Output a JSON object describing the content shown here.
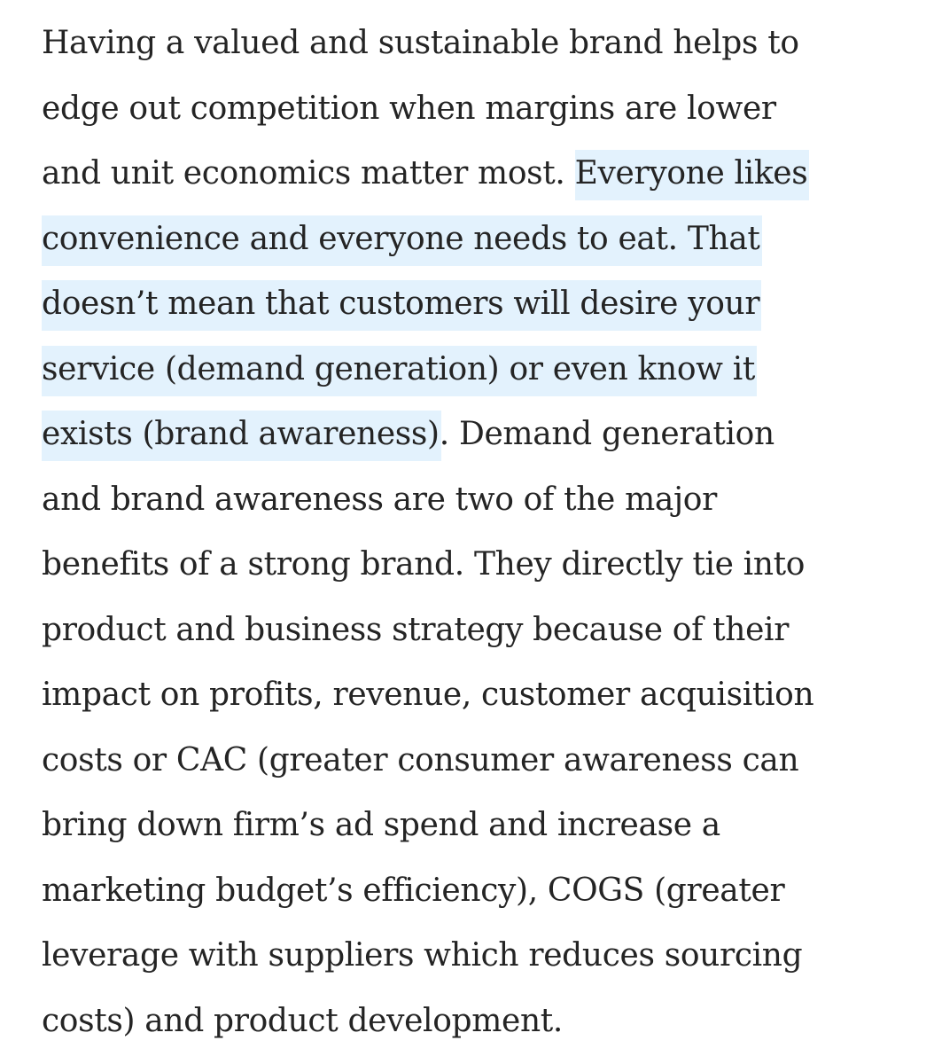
{
  "article": {
    "paragraph": {
      "lines": [
        {
          "plain_before": "Having a valued and sustainable brand helps to",
          "highlight": "",
          "plain_after": ""
        },
        {
          "plain_before": "edge out competition when margins are lower",
          "highlight": "",
          "plain_after": ""
        },
        {
          "plain_before": "and unit economics matter most. ",
          "highlight": "Everyone likes",
          "plain_after": ""
        },
        {
          "plain_before": "",
          "highlight": "convenience and everyone needs to eat. That",
          "plain_after": ""
        },
        {
          "plain_before": "",
          "highlight": "doesn’t mean that customers will desire your",
          "plain_after": ""
        },
        {
          "plain_before": "",
          "highlight": "service (demand generation) or even know it",
          "plain_after": ""
        },
        {
          "plain_before": "",
          "highlight": "exists (brand awareness)",
          "plain_after": ". Demand generation"
        },
        {
          "plain_before": "and brand awareness are two of the major",
          "highlight": "",
          "plain_after": ""
        },
        {
          "plain_before": "benefits of a strong brand. They directly tie into",
          "highlight": "",
          "plain_after": ""
        },
        {
          "plain_before": "product and business strategy because of their",
          "highlight": "",
          "plain_after": ""
        },
        {
          "plain_before": "impact on profits, revenue, customer acquisition",
          "highlight": "",
          "plain_after": ""
        },
        {
          "plain_before": "costs or CAC (greater consumer awareness can",
          "highlight": "",
          "plain_after": ""
        },
        {
          "plain_before": "bring down firm’s ad spend and increase a",
          "highlight": "",
          "plain_after": ""
        },
        {
          "plain_before": "marketing budget’s efficiency), COGS (greater",
          "highlight": "",
          "plain_after": ""
        },
        {
          "plain_before": "leverage with suppliers which reduces sourcing",
          "highlight": "",
          "plain_after": ""
        },
        {
          "plain_before": "costs) and product development.",
          "highlight": "",
          "plain_after": ""
        }
      ]
    }
  },
  "colors": {
    "text": "#242424",
    "highlight": "#e3f2fd",
    "background": "#ffffff"
  }
}
